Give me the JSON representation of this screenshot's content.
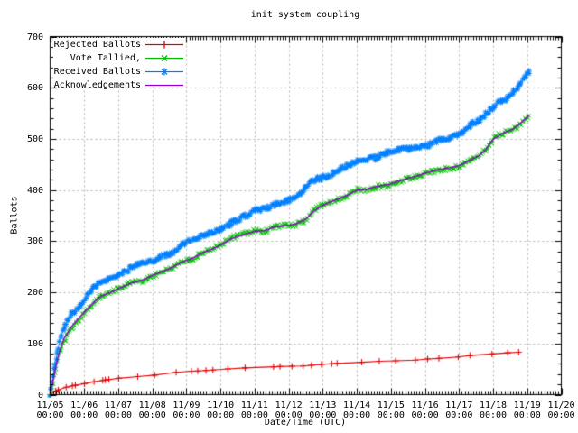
{
  "colors": {
    "background": "#ffffff",
    "grid": "#b3b3b3",
    "axis": "#000000"
  },
  "chart_data": {
    "type": "line",
    "title": "init system coupling",
    "xlabel": "Date/Time (UTC)",
    "ylabel": "Ballots",
    "x_unit": "days since 11/05 00:00",
    "xlim": [
      0,
      15
    ],
    "ylim": [
      0,
      700
    ],
    "grid": true,
    "legend_position": "top-left",
    "x_tick_labels": [
      {
        "date": "11/05",
        "time": "00:00"
      },
      {
        "date": "11/06",
        "time": "00:00"
      },
      {
        "date": "11/07",
        "time": "00:00"
      },
      {
        "date": "11/08",
        "time": "00:00"
      },
      {
        "date": "11/09",
        "time": "00:00"
      },
      {
        "date": "11/10",
        "time": "00:00"
      },
      {
        "date": "11/11",
        "time": "00:00"
      },
      {
        "date": "11/12",
        "time": "00:00"
      },
      {
        "date": "11/13",
        "time": "00:00"
      },
      {
        "date": "11/14",
        "time": "00:00"
      },
      {
        "date": "11/15",
        "time": "00:00"
      },
      {
        "date": "11/16",
        "time": "00:00"
      },
      {
        "date": "11/17",
        "time": "00:00"
      },
      {
        "date": "11/18",
        "time": "00:00"
      },
      {
        "date": "11/19",
        "time": "00:00"
      },
      {
        "date": "11/20",
        "time": "00:00"
      }
    ],
    "y_tick_labels": [
      "0",
      "100",
      "200",
      "300",
      "400",
      "500",
      "600",
      "700"
    ],
    "series": [
      {
        "name": "Rejected Ballots",
        "color": "#e60000",
        "marker": "plus",
        "points": [
          [
            0,
            0
          ],
          [
            0.1,
            5
          ],
          [
            0.3,
            11
          ],
          [
            0.5,
            15
          ],
          [
            0.8,
            19
          ],
          [
            1,
            21
          ],
          [
            1.3,
            25
          ],
          [
            1.6,
            28
          ],
          [
            2,
            31
          ],
          [
            2.4,
            34
          ],
          [
            2.8,
            37
          ],
          [
            3.2,
            40
          ],
          [
            3.6,
            43
          ],
          [
            4,
            45
          ],
          [
            4.5,
            47
          ],
          [
            5,
            49
          ],
          [
            5.5,
            51
          ],
          [
            6,
            53
          ],
          [
            6.5,
            54
          ],
          [
            7,
            55
          ],
          [
            7.5,
            57
          ],
          [
            8,
            60
          ],
          [
            8.5,
            62
          ],
          [
            9,
            63
          ],
          [
            9.5,
            65
          ],
          [
            10,
            66
          ],
          [
            10.5,
            67
          ],
          [
            11,
            69
          ],
          [
            11.5,
            71
          ],
          [
            12,
            74
          ],
          [
            12.3,
            76
          ],
          [
            12.7,
            77
          ],
          [
            13,
            79
          ],
          [
            13.4,
            81
          ],
          [
            13.75,
            83
          ]
        ]
      },
      {
        "name": "Vote Tallied,",
        "color": "#00c000",
        "marker": "cross",
        "points": [
          [
            0,
            0
          ],
          [
            0.08,
            22
          ],
          [
            0.15,
            45
          ],
          [
            0.25,
            75
          ],
          [
            0.4,
            105
          ],
          [
            0.6,
            128
          ],
          [
            0.8,
            145
          ],
          [
            1,
            160
          ],
          [
            1.2,
            175
          ],
          [
            1.5,
            190
          ],
          [
            2,
            207
          ],
          [
            2.5,
            220
          ],
          [
            3,
            235
          ],
          [
            3.5,
            248
          ],
          [
            4,
            263
          ],
          [
            4.5,
            278
          ],
          [
            5,
            293
          ],
          [
            5.3,
            303
          ],
          [
            5.6,
            310
          ],
          [
            6,
            318
          ],
          [
            6.5,
            326
          ],
          [
            7,
            332
          ],
          [
            7.2,
            336
          ],
          [
            7.5,
            345
          ],
          [
            7.7,
            357
          ],
          [
            8,
            370
          ],
          [
            8.3,
            380
          ],
          [
            8.6,
            388
          ],
          [
            9,
            398
          ],
          [
            9.5,
            407
          ],
          [
            10,
            414
          ],
          [
            10.5,
            424
          ],
          [
            11,
            434
          ],
          [
            11.5,
            442
          ],
          [
            12,
            450
          ],
          [
            12.3,
            458
          ],
          [
            12.6,
            470
          ],
          [
            12.8,
            480
          ],
          [
            13,
            498
          ],
          [
            13.3,
            512
          ],
          [
            13.6,
            522
          ],
          [
            13.8,
            532
          ],
          [
            14,
            543
          ],
          [
            14.05,
            548
          ]
        ]
      },
      {
        "name": "Received Ballots",
        "color": "#0080ff",
        "marker": "star",
        "points": [
          [
            0,
            0
          ],
          [
            0.08,
            30
          ],
          [
            0.15,
            60
          ],
          [
            0.25,
            95
          ],
          [
            0.4,
            130
          ],
          [
            0.6,
            155
          ],
          [
            0.8,
            172
          ],
          [
            1,
            190
          ],
          [
            1.2,
            205
          ],
          [
            1.5,
            218
          ],
          [
            2,
            235
          ],
          [
            2.4,
            246
          ],
          [
            2.7,
            255
          ],
          [
            3,
            263
          ],
          [
            3.4,
            272
          ],
          [
            3.7,
            282
          ],
          [
            4,
            295
          ],
          [
            4.3,
            303
          ],
          [
            4.6,
            312
          ],
          [
            5,
            325
          ],
          [
            5.2,
            335
          ],
          [
            5.5,
            345
          ],
          [
            6,
            357
          ],
          [
            6.3,
            365
          ],
          [
            6.7,
            372
          ],
          [
            7,
            380
          ],
          [
            7.2,
            386
          ],
          [
            7.4,
            395
          ],
          [
            7.6,
            412
          ],
          [
            7.8,
            418
          ],
          [
            8,
            422
          ],
          [
            8.3,
            432
          ],
          [
            8.6,
            442
          ],
          [
            9,
            452
          ],
          [
            9.3,
            458
          ],
          [
            9.6,
            465
          ],
          [
            10,
            472
          ],
          [
            10.3,
            477
          ],
          [
            10.7,
            483
          ],
          [
            11,
            489
          ],
          [
            11.3,
            496
          ],
          [
            11.6,
            502
          ],
          [
            12,
            509
          ],
          [
            12.2,
            515
          ],
          [
            12.5,
            535
          ],
          [
            12.8,
            548
          ],
          [
            13,
            556
          ],
          [
            13.2,
            570
          ],
          [
            13.35,
            574
          ],
          [
            13.5,
            582
          ],
          [
            13.7,
            596
          ],
          [
            13.85,
            610
          ],
          [
            14.05,
            630
          ]
        ]
      },
      {
        "name": "Acknowledgements",
        "color": "#9400d3",
        "marker": "none",
        "points": [
          [
            0,
            0
          ],
          [
            0.08,
            26
          ],
          [
            0.15,
            50
          ],
          [
            0.25,
            80
          ],
          [
            0.4,
            110
          ],
          [
            0.6,
            132
          ],
          [
            0.8,
            148
          ],
          [
            1,
            162
          ],
          [
            1.2,
            176
          ],
          [
            1.5,
            191
          ],
          [
            2,
            207
          ],
          [
            2.5,
            220
          ],
          [
            3,
            235
          ],
          [
            3.5,
            248
          ],
          [
            4,
            263
          ],
          [
            4.5,
            278
          ],
          [
            5,
            293
          ],
          [
            5.3,
            303
          ],
          [
            5.6,
            310
          ],
          [
            6,
            318
          ],
          [
            6.5,
            326
          ],
          [
            7,
            332
          ],
          [
            7.2,
            336
          ],
          [
            7.5,
            345
          ],
          [
            7.7,
            357
          ],
          [
            8,
            370
          ],
          [
            8.3,
            380
          ],
          [
            8.6,
            388
          ],
          [
            9,
            398
          ],
          [
            9.5,
            407
          ],
          [
            10,
            414
          ],
          [
            10.5,
            424
          ],
          [
            11,
            434
          ],
          [
            11.5,
            442
          ],
          [
            12,
            450
          ],
          [
            12.3,
            458
          ],
          [
            12.6,
            470
          ],
          [
            12.8,
            480
          ],
          [
            13,
            498
          ],
          [
            13.3,
            512
          ],
          [
            13.6,
            522
          ],
          [
            13.8,
            532
          ],
          [
            14,
            543
          ],
          [
            14.05,
            548
          ]
        ]
      }
    ]
  }
}
